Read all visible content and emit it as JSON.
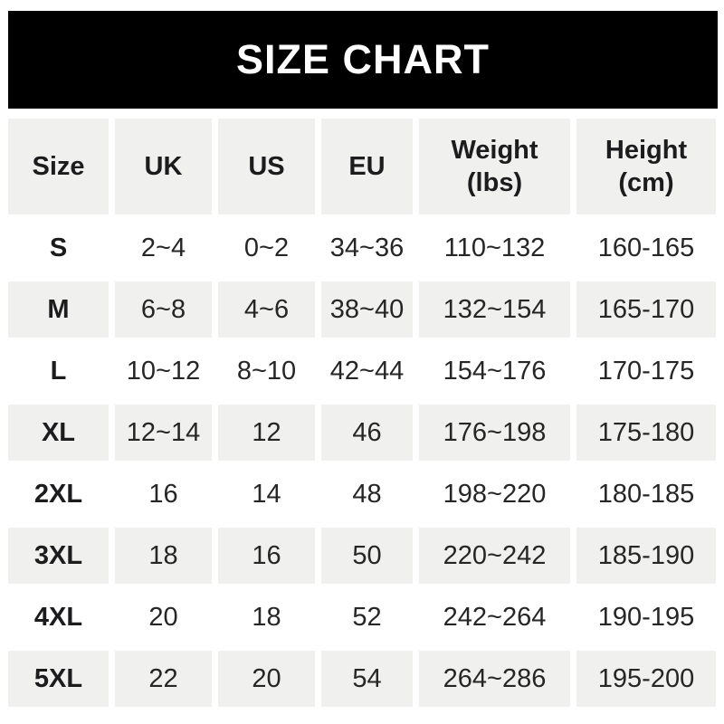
{
  "banner": {
    "title": "SIZE CHART"
  },
  "colors": {
    "banner_bg": "#000000",
    "banner_text": "#ffffff",
    "shaded_row_bg": "#f0f0ef",
    "page_bg": "#ffffff",
    "text": "#1f1f1f"
  },
  "table": {
    "headers": [
      {
        "line1": "Size",
        "line2": ""
      },
      {
        "line1": "UK",
        "line2": ""
      },
      {
        "line1": "US",
        "line2": ""
      },
      {
        "line1": "EU",
        "line2": ""
      },
      {
        "line1": "Weight",
        "line2": "(lbs)"
      },
      {
        "line1": "Height",
        "line2": "(cm)"
      }
    ],
    "rows": [
      {
        "size": "S",
        "uk": "2~4",
        "us": "0~2",
        "eu": "34~36",
        "weight": "110~132",
        "height": "160-165"
      },
      {
        "size": "M",
        "uk": "6~8",
        "us": "4~6",
        "eu": "38~40",
        "weight": "132~154",
        "height": "165-170"
      },
      {
        "size": "L",
        "uk": "10~12",
        "us": "8~10",
        "eu": "42~44",
        "weight": "154~176",
        "height": "170-175"
      },
      {
        "size": "XL",
        "uk": "12~14",
        "us": "12",
        "eu": "46",
        "weight": "176~198",
        "height": "175-180"
      },
      {
        "size": "2XL",
        "uk": "16",
        "us": "14",
        "eu": "48",
        "weight": "198~220",
        "height": "180-185"
      },
      {
        "size": "3XL",
        "uk": "18",
        "us": "16",
        "eu": "50",
        "weight": "220~242",
        "height": "185-190"
      },
      {
        "size": "4XL",
        "uk": "20",
        "us": "18",
        "eu": "52",
        "weight": "242~264",
        "height": "190-195"
      },
      {
        "size": "5XL",
        "uk": "22",
        "us": "20",
        "eu": "54",
        "weight": "264~286",
        "height": "195-200"
      }
    ]
  },
  "chart_data": {
    "type": "table",
    "title": "SIZE CHART",
    "columns": [
      "Size",
      "UK",
      "US",
      "EU",
      "Weight (lbs)",
      "Height (cm)"
    ],
    "rows": [
      [
        "S",
        "2~4",
        "0~2",
        "34~36",
        "110~132",
        "160-165"
      ],
      [
        "M",
        "6~8",
        "4~6",
        "38~40",
        "132~154",
        "165-170"
      ],
      [
        "L",
        "10~12",
        "8~10",
        "42~44",
        "154~176",
        "170-175"
      ],
      [
        "XL",
        "12~14",
        "12",
        "46",
        "176~198",
        "175-180"
      ],
      [
        "2XL",
        "16",
        "14",
        "48",
        "198~220",
        "180-185"
      ],
      [
        "3XL",
        "18",
        "16",
        "50",
        "220~242",
        "185-190"
      ],
      [
        "4XL",
        "20",
        "18",
        "52",
        "242~264",
        "190-195"
      ],
      [
        "5XL",
        "22",
        "20",
        "54",
        "264~286",
        "195-200"
      ]
    ],
    "layout": {
      "header_background": "#f0f0ef",
      "alternating_row_backgrounds": [
        "#ffffff",
        "#f0f0ef"
      ],
      "banner_background": "#000000"
    }
  }
}
